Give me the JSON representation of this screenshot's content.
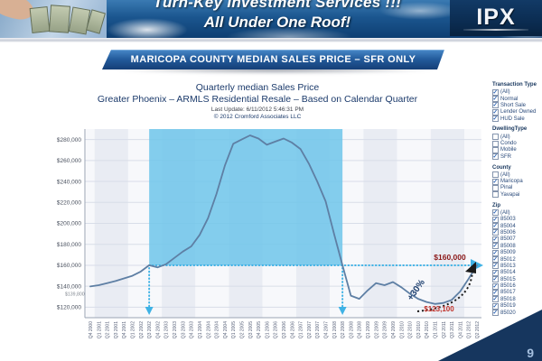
{
  "header": {
    "title_line1": "Turn-Key Investment Services !!!",
    "title_line2": "All Under One Roof!",
    "logo_text": "IPX",
    "page_number": "9"
  },
  "banner": {
    "label": "MARICOPA COUNTY MEDIAN SALES PRICE – SFR ONLY"
  },
  "chart_data": {
    "type": "line",
    "title": "Quarterly median Sales Price",
    "subtitle": "Greater Phoenix – ARMLS Residential Resale – Based on Calendar Quarter",
    "update_note": "Last Update: 6/11/2012 5:46:31 PM",
    "copyright": "© 2012 Cromford Associates LLC",
    "x": [
      "Q4 2000",
      "Q1 2001",
      "Q2 2001",
      "Q3 2001",
      "Q4 2001",
      "Q1 2002",
      "Q2 2002",
      "Q3 2002",
      "Q4 2002",
      "Q1 2003",
      "Q2 2003",
      "Q3 2003",
      "Q4 2003",
      "Q1 2004",
      "Q2 2004",
      "Q3 2004",
      "Q4 2004",
      "Q1 2005",
      "Q2 2005",
      "Q3 2005",
      "Q4 2005",
      "Q1 2006",
      "Q2 2006",
      "Q3 2006",
      "Q4 2006",
      "Q1 2007",
      "Q2 2007",
      "Q3 2007",
      "Q4 2007",
      "Q1 2008",
      "Q2 2008",
      "Q3 2008",
      "Q4 2008",
      "Q1 2009",
      "Q2 2009",
      "Q3 2009",
      "Q4 2009",
      "Q1 2010",
      "Q2 2010",
      "Q3 2010",
      "Q4 2010",
      "Q1 2011",
      "Q2 2011",
      "Q3 2011",
      "Q4 2011",
      "Q1 2012",
      "Q2 2012"
    ],
    "series": [
      {
        "name": "Median Sales Price",
        "values": [
          139800,
          141000,
          143000,
          145000,
          147500,
          150000,
          154000,
          160000,
          158000,
          161000,
          167000,
          173000,
          178000,
          189000,
          205000,
          228000,
          255000,
          276000,
          280000,
          284000,
          281000,
          275000,
          278000,
          281000,
          277000,
          271000,
          257000,
          240000,
          221000,
          190000,
          160000,
          131000,
          128000,
          136000,
          143000,
          141000,
          144000,
          139000,
          133000,
          128000,
          125000,
          123100,
          124000,
          127000,
          135000,
          147000,
          160000
        ]
      }
    ],
    "ylim": [
      110000,
      290000
    ],
    "yticks": [
      120000,
      140000,
      160000,
      180000,
      200000,
      220000,
      240000,
      260000,
      280000
    ],
    "grid": "horizontal-lines with alternating yearly vertical bands",
    "legend": "none",
    "annotations": {
      "start_value_label": "$139,800",
      "reference_value_label": "$160,000",
      "trough_value_label": "$123,100",
      "growth_label": "+30%",
      "reference_level": 160000,
      "shaded_region": {
        "start_index": 7,
        "end_index": 30,
        "bottom_level": 160000
      }
    },
    "colors": {
      "line": "#5e7fa4",
      "shaded": "#6fc6ea",
      "arrow": "#3fb2e5",
      "start_label": "#808790",
      "end_label": "#8b1717",
      "trough_label": "#c03028",
      "growth_label": "#1c3e6e",
      "growth_arrow": "#1a1a1a",
      "band_odd": "#e9ecf3",
      "band_even": "#f7f8fb"
    }
  },
  "filters": {
    "sections": [
      {
        "title": "Transaction Type",
        "items": [
          {
            "label": "(All)",
            "checked": true
          },
          {
            "label": "Normal",
            "checked": true
          },
          {
            "label": "Short Sale",
            "checked": true
          },
          {
            "label": "Lender Owned",
            "checked": true
          },
          {
            "label": "HUD Sale",
            "checked": true
          }
        ]
      },
      {
        "title": "DwellingType",
        "items": [
          {
            "label": "(All)",
            "checked": false
          },
          {
            "label": "Condo",
            "checked": false
          },
          {
            "label": "Mobile",
            "checked": false
          },
          {
            "label": "SFR",
            "checked": true
          }
        ]
      },
      {
        "title": "County",
        "items": [
          {
            "label": "(All)",
            "checked": false
          },
          {
            "label": "Maricopa",
            "checked": true
          },
          {
            "label": "Pinal",
            "checked": false
          },
          {
            "label": "Yavapai",
            "checked": false
          }
        ]
      },
      {
        "title": "Zip",
        "items": [
          {
            "label": "(All)",
            "checked": true
          },
          {
            "label": "85003",
            "checked": true
          },
          {
            "label": "85004",
            "checked": true
          },
          {
            "label": "85006",
            "checked": true
          },
          {
            "label": "85007",
            "checked": true
          },
          {
            "label": "85008",
            "checked": true
          },
          {
            "label": "85009",
            "checked": true
          },
          {
            "label": "85012",
            "checked": true
          },
          {
            "label": "85013",
            "checked": true
          },
          {
            "label": "85014",
            "checked": true
          },
          {
            "label": "85015",
            "checked": true
          },
          {
            "label": "85016",
            "checked": true
          },
          {
            "label": "85017",
            "checked": true
          },
          {
            "label": "85018",
            "checked": true
          },
          {
            "label": "85019",
            "checked": true
          },
          {
            "label": "85020",
            "checked": true
          }
        ]
      }
    ]
  }
}
